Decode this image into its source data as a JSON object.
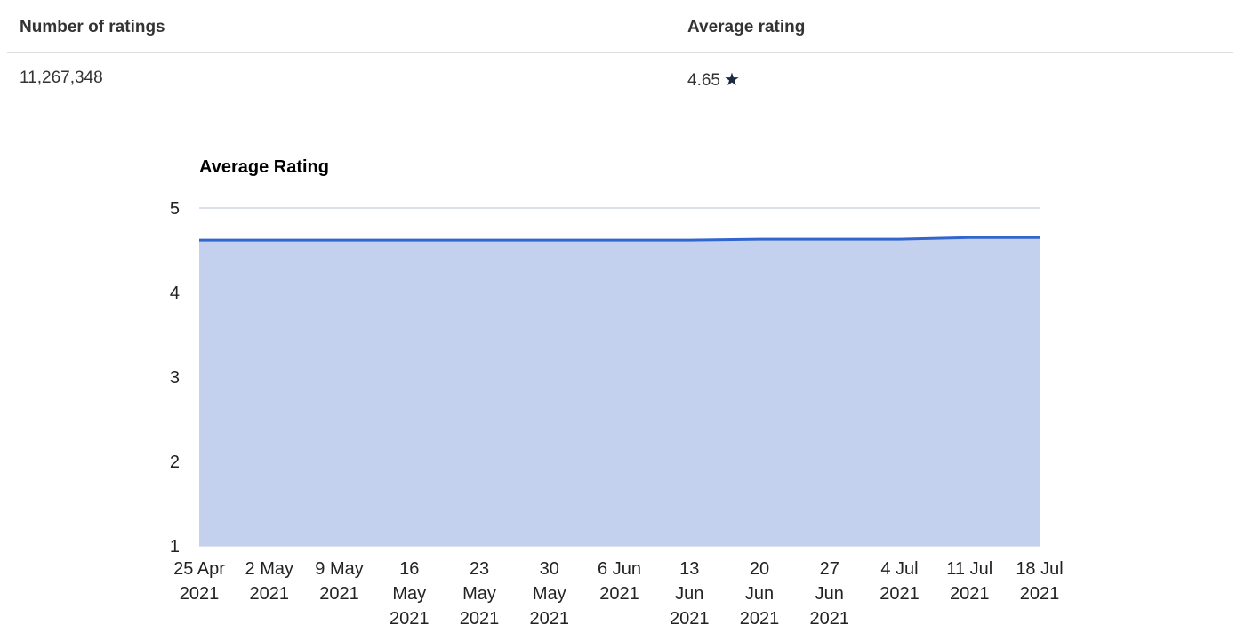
{
  "stats": {
    "number_of_ratings_label": "Number of ratings",
    "number_of_ratings_value": "11,267,348",
    "average_rating_label": "Average rating",
    "average_rating_value": "4.65",
    "star_icon": "star-icon"
  },
  "colors": {
    "line": "#3366cc",
    "area": "#c3d1ee",
    "grid": "#b8c0d6",
    "axis_text": "#222222",
    "star": "#1a2a44"
  },
  "chart_data": {
    "type": "area",
    "title": "Average Rating",
    "xlabel": "",
    "ylabel": "",
    "ylim": [
      1,
      5
    ],
    "yticks": [
      "1",
      "2",
      "3",
      "4",
      "5"
    ],
    "grid": true,
    "legend": "none",
    "categories": [
      "25 Apr 2021",
      "2 May 2021",
      "9 May 2021",
      "16 May 2021",
      "23 May 2021",
      "30 May 2021",
      "6 Jun 2021",
      "13 Jun 2021",
      "20 Jun 2021",
      "27 Jun 2021",
      "4 Jul 2021",
      "11 Jul 2021",
      "18 Jul 2021"
    ],
    "tick_labels": [
      [
        "25 Apr",
        "2021"
      ],
      [
        "2 May",
        "2021"
      ],
      [
        "9 May",
        "2021"
      ],
      [
        "16",
        "May",
        "2021"
      ],
      [
        "23",
        "May",
        "2021"
      ],
      [
        "30",
        "May",
        "2021"
      ],
      [
        "6 Jun",
        "2021"
      ],
      [
        "13",
        "Jun",
        "2021"
      ],
      [
        "20",
        "Jun",
        "2021"
      ],
      [
        "27",
        "Jun",
        "2021"
      ],
      [
        "4 Jul",
        "2021"
      ],
      [
        "11 Jul",
        "2021"
      ],
      [
        "18 Jul",
        "2021"
      ]
    ],
    "series": [
      {
        "values": [
          4.62,
          4.62,
          4.62,
          4.62,
          4.62,
          4.62,
          4.62,
          4.62,
          4.63,
          4.63,
          4.63,
          4.65,
          4.65
        ]
      }
    ]
  }
}
